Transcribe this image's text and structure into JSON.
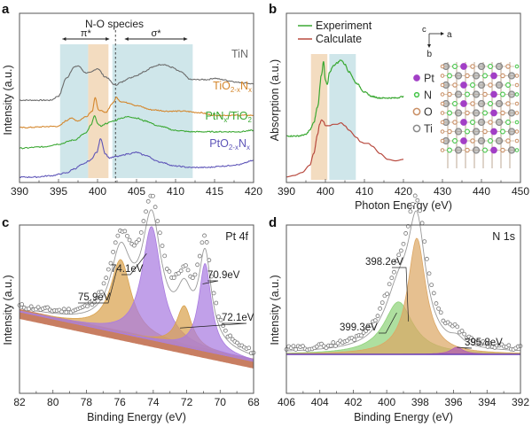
{
  "chart_data": [
    {
      "panel": "a",
      "type": "line",
      "title": "",
      "xlabel": "",
      "ylabel": "Intensity (a.u.)",
      "xlim": [
        390,
        420
      ],
      "xticks": [
        390,
        395,
        400,
        405,
        410,
        415,
        420
      ],
      "yticks_visible": false,
      "annotations": {
        "header": "N-O species",
        "pi_label": "π*",
        "pi_range": [
          395.5,
          401.5
        ],
        "sigma_label": "σ*",
        "sigma_range": [
          403.5,
          411.5
        ],
        "dashed_line_x": 402.3
      },
      "shaded_bands": [
        {
          "name": "pi-star-blue",
          "range": [
            395.2,
            398.8
          ],
          "color": "#cfe6ea"
        },
        {
          "name": "pi-star-orange",
          "range": [
            398.8,
            401.4
          ],
          "color": "#f3dcc0"
        },
        {
          "name": "sigma-star-blue",
          "range": [
            401.9,
            412.2
          ],
          "color": "#cfe6ea"
        }
      ],
      "series": [
        {
          "name": "TiN",
          "label_main": "TiN",
          "label_sub": "",
          "color": "#6b6b6b",
          "x": [
            390,
            394,
            395,
            396,
            397,
            397.5,
            398.5,
            399,
            400,
            401,
            402.3,
            403,
            404,
            405,
            406,
            407,
            408,
            408.5,
            409.5,
            410.5,
            412,
            413,
            414,
            415,
            416,
            417,
            418,
            420
          ],
          "y": [
            0.58,
            0.58,
            0.61,
            0.74,
            0.82,
            0.83,
            0.78,
            0.78,
            0.81,
            0.75,
            0.69,
            0.71,
            0.74,
            0.76,
            0.79,
            0.82,
            0.84,
            0.84,
            0.82,
            0.79,
            0.73,
            0.73,
            0.73,
            0.74,
            0.73,
            0.72,
            0.71,
            0.7
          ]
        },
        {
          "name": "TiO2-xNx",
          "label_main": "TiO",
          "label_sub": "2-x",
          "label_main2": "N",
          "label_sub2": "x",
          "color": "#d4862b",
          "x": [
            390,
            395,
            396,
            396.5,
            397.5,
            398.5,
            399.3,
            399.7,
            400.1,
            401,
            402,
            402.4,
            403,
            404,
            405,
            407,
            409,
            411,
            413,
            415,
            418,
            420
          ],
          "y": [
            0.38,
            0.39,
            0.43,
            0.45,
            0.43,
            0.46,
            0.5,
            0.6,
            0.51,
            0.49,
            0.56,
            0.6,
            0.57,
            0.56,
            0.54,
            0.51,
            0.5,
            0.5,
            0.49,
            0.47,
            0.47,
            0.47
          ]
        },
        {
          "name": "PtNx/TiO2",
          "label_main": "PtN",
          "label_sub": "x",
          "label_main2": "/TiO",
          "label_sub2": "2",
          "color": "#3aa832",
          "x": [
            390,
            393,
            395,
            397,
            398.5,
            399.2,
            399.6,
            400,
            400.5,
            401,
            402.2,
            403,
            404,
            405,
            406,
            408,
            410,
            412,
            414,
            416,
            418,
            420
          ],
          "y": [
            0.23,
            0.24,
            0.26,
            0.29,
            0.34,
            0.4,
            0.47,
            0.41,
            0.39,
            0.41,
            0.43,
            0.45,
            0.46,
            0.45,
            0.43,
            0.39,
            0.36,
            0.35,
            0.35,
            0.35,
            0.35,
            0.36
          ]
        },
        {
          "name": "PtO2-xNx",
          "label_main": "PtO",
          "label_sub": "2-x",
          "label_main2": "N",
          "label_sub2": "x",
          "color": "#5e55b8",
          "x": [
            390,
            392,
            394,
            396,
            397,
            398,
            399,
            399.9,
            400.4,
            401,
            401.5,
            402.5,
            404,
            405,
            406,
            408,
            410,
            412,
            414,
            416,
            418,
            420
          ],
          "y": [
            0.02,
            0.02,
            0.03,
            0.05,
            0.08,
            0.11,
            0.14,
            0.2,
            0.3,
            0.19,
            0.16,
            0.17,
            0.19,
            0.2,
            0.18,
            0.13,
            0.1,
            0.09,
            0.09,
            0.1,
            0.11,
            0.14
          ]
        }
      ]
    },
    {
      "panel": "b",
      "type": "line",
      "xlabel": "Photon Energy (eV)",
      "ylabel": "Absorption (a.u.)",
      "xlim": [
        390,
        450
      ],
      "xticks": [
        390,
        400,
        410,
        420,
        430,
        440,
        450
      ],
      "legend": {
        "placement": "top-left",
        "entries": [
          "Experiment",
          "Calculate"
        ]
      },
      "shaded_bands": [
        {
          "name": "orange-band",
          "range": [
            396.3,
            400.5
          ],
          "color": "#f3dcc0"
        },
        {
          "name": "blue-band",
          "range": [
            401,
            407.8
          ],
          "color": "#cfe6ea"
        }
      ],
      "series": [
        {
          "name": "Experiment",
          "color": "#3aa832",
          "x": [
            390,
            393,
            395,
            396,
            397,
            398,
            399,
            399.5,
            400,
            400.5,
            401,
            402,
            403,
            404,
            405,
            406,
            408,
            410,
            412,
            414,
            416,
            418,
            420
          ],
          "y": [
            0.3,
            0.3,
            0.31,
            0.34,
            0.39,
            0.5,
            0.72,
            0.81,
            0.68,
            0.65,
            0.73,
            0.78,
            0.8,
            0.82,
            0.79,
            0.74,
            0.66,
            0.6,
            0.57,
            0.56,
            0.56,
            0.56,
            0.57
          ]
        },
        {
          "name": "Calculate",
          "color": "#b84a3f",
          "x": [
            390,
            392,
            394,
            396,
            397,
            398,
            398.5,
            399,
            399.5,
            400,
            401,
            402,
            403,
            404,
            405,
            406,
            408,
            409,
            410,
            411,
            412,
            414,
            416,
            418,
            420
          ],
          "y": [
            0.02,
            0.03,
            0.05,
            0.1,
            0.18,
            0.31,
            0.38,
            0.41,
            0.4,
            0.37,
            0.37,
            0.38,
            0.38,
            0.39,
            0.37,
            0.34,
            0.29,
            0.26,
            0.25,
            0.25,
            0.23,
            0.18,
            0.14,
            0.13,
            0.14
          ]
        }
      ],
      "inset": {
        "axes": {
          "c": "c",
          "a": "a",
          "b": "b"
        },
        "legend": [
          {
            "label": "Pt",
            "color": "#a23fc6",
            "name": "pt"
          },
          {
            "label": "N",
            "color": "#44c447",
            "name": "n"
          },
          {
            "label": "O",
            "color": "#c98f65",
            "name": "o"
          },
          {
            "label": "Ti",
            "color": "#8a8a8a",
            "name": "ti"
          }
        ]
      }
    },
    {
      "panel": "c",
      "type": "scatter",
      "title": "Pt 4f",
      "xlabel": "Binding Energy (eV)",
      "ylabel": "Intensity (a.u.)",
      "xlim": [
        82,
        68
      ],
      "xticks": [
        82,
        80,
        78,
        76,
        74,
        72,
        70,
        68
      ],
      "peaks": [
        {
          "label": "75.9eV",
          "center": 75.95,
          "height": 0.52,
          "width": 0.75,
          "color": "#d9a24e"
        },
        {
          "label": "74.1eV",
          "center": 74.1,
          "height": 0.8,
          "width": 0.7,
          "color": "#a97be0"
        },
        {
          "label": "72.1eV",
          "center": 72.15,
          "height": 0.29,
          "width": 0.55,
          "color": "#d9a24e"
        },
        {
          "label": "70.9eV",
          "center": 70.9,
          "height": 0.62,
          "width": 0.45,
          "color": "#a97be0"
        }
      ],
      "background": {
        "start": 0.45,
        "end": 0.1
      }
    },
    {
      "panel": "d",
      "type": "scatter",
      "title": "N 1s",
      "xlabel": "Binding Energy (eV)",
      "ylabel": "Intensity (a.u.)",
      "xlim": [
        406,
        392
      ],
      "xticks": [
        406,
        404,
        402,
        400,
        398,
        396,
        394,
        392
      ],
      "peaks": [
        {
          "label": "399.3eV",
          "center": 399.3,
          "height": 0.37,
          "width": 1.05,
          "color": "#8fd27a"
        },
        {
          "label": "398.2eV",
          "center": 398.2,
          "height": 0.82,
          "width": 0.65,
          "color": "#dca765"
        },
        {
          "label": "395.8eV",
          "center": 395.8,
          "height": 0.05,
          "width": 0.45,
          "color": "#b15bb8"
        }
      ],
      "baseline": 0.15
    }
  ]
}
